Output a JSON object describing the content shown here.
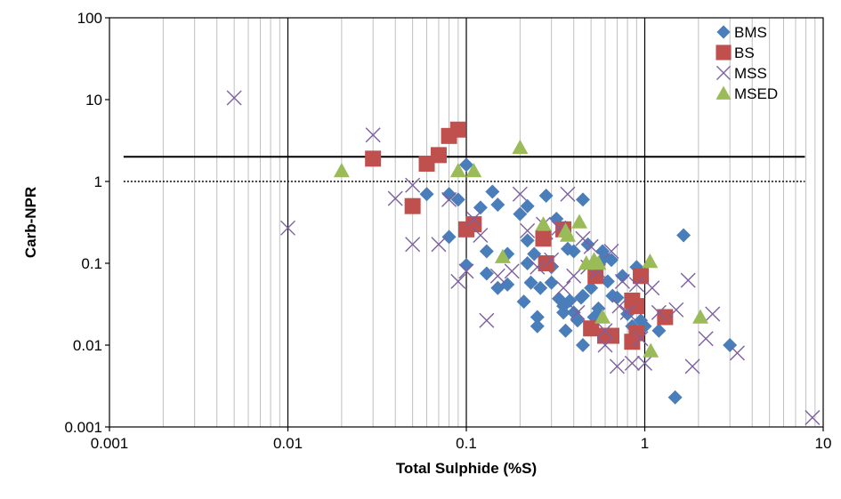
{
  "chart_data": {
    "type": "scatter",
    "title": "",
    "xlabel": "Total Sulphide (%S)",
    "ylabel": "Carb-NPR",
    "x_scale": "log",
    "y_scale": "log",
    "xlim": [
      0.001,
      10
    ],
    "ylim": [
      0.001,
      100
    ],
    "x_tick_labels": [
      "0.001",
      "0.01",
      "0.1",
      "1",
      "10"
    ],
    "y_tick_labels": [
      "0.001",
      "0.01",
      "0.1",
      "1",
      "10",
      "100"
    ],
    "grid": "vertical minor and major gridlines",
    "legend_position": "top-right",
    "reference_lines": [
      {
        "y": 2,
        "x_range": [
          0.0012,
          7.9
        ],
        "style": "solid"
      },
      {
        "y": 1,
        "x_range": [
          0.0012,
          7.9
        ],
        "style": "dotted"
      }
    ],
    "series": [
      {
        "name": "BMS",
        "marker": "diamond",
        "color": "#4a7ebb",
        "points": [
          [
            0.06,
            0.7
          ],
          [
            0.08,
            0.7
          ],
          [
            0.09,
            0.6
          ],
          [
            0.08,
            0.21
          ],
          [
            0.1,
            1.6
          ],
          [
            0.12,
            0.48
          ],
          [
            0.13,
            0.14
          ],
          [
            0.13,
            0.075
          ],
          [
            0.14,
            0.75
          ],
          [
            0.15,
            0.52
          ],
          [
            0.15,
            0.05
          ],
          [
            0.17,
            0.13
          ],
          [
            0.17,
            0.055
          ],
          [
            0.1,
            0.095
          ],
          [
            0.2,
            0.4
          ],
          [
            0.21,
            0.034
          ],
          [
            0.22,
            0.19
          ],
          [
            0.22,
            0.5
          ],
          [
            0.22,
            0.1
          ],
          [
            0.23,
            0.058
          ],
          [
            0.24,
            0.13
          ],
          [
            0.25,
            0.022
          ],
          [
            0.25,
            0.017
          ],
          [
            0.28,
            0.67
          ],
          [
            0.28,
            0.2
          ],
          [
            0.3,
            0.058
          ],
          [
            0.32,
            0.35
          ],
          [
            0.33,
            0.037
          ],
          [
            0.35,
            0.025
          ],
          [
            0.36,
            0.015
          ],
          [
            0.37,
            0.15
          ],
          [
            0.38,
            0.035
          ],
          [
            0.4,
            0.025
          ],
          [
            0.42,
            0.02
          ],
          [
            0.44,
            0.038
          ],
          [
            0.45,
            0.6
          ],
          [
            0.45,
            0.01
          ],
          [
            0.48,
            0.17
          ],
          [
            0.5,
            0.05
          ],
          [
            0.52,
            0.022
          ],
          [
            0.55,
            0.028
          ],
          [
            0.58,
            0.14
          ],
          [
            0.6,
            0.12
          ],
          [
            0.65,
            0.11
          ],
          [
            0.66,
            0.04
          ],
          [
            0.7,
            0.038
          ],
          [
            0.75,
            0.07
          ],
          [
            0.8,
            0.024
          ],
          [
            0.85,
            0.017
          ],
          [
            0.9,
            0.09
          ],
          [
            0.95,
            0.02
          ],
          [
            1.0,
            0.017
          ],
          [
            1.2,
            0.015
          ],
          [
            1.48,
            0.0023
          ],
          [
            1.65,
            0.22
          ],
          [
            3.0,
            0.01
          ],
          [
            0.3,
            0.09
          ],
          [
            0.4,
            0.14
          ],
          [
            0.55,
            0.1
          ],
          [
            0.35,
            0.03
          ],
          [
            0.45,
            0.04
          ],
          [
            0.62,
            0.06
          ],
          [
            0.26,
            0.05
          ]
        ]
      },
      {
        "name": "BS",
        "marker": "square",
        "color": "#c0504d",
        "points": [
          [
            0.03,
            1.9
          ],
          [
            0.05,
            0.5
          ],
          [
            0.06,
            1.65
          ],
          [
            0.07,
            2.1
          ],
          [
            0.08,
            3.6
          ],
          [
            0.09,
            4.3
          ],
          [
            0.1,
            0.26
          ],
          [
            0.11,
            0.3
          ],
          [
            0.27,
            0.2
          ],
          [
            0.28,
            0.1
          ],
          [
            0.35,
            0.26
          ],
          [
            0.5,
            0.016
          ],
          [
            0.53,
            0.07
          ],
          [
            0.6,
            0.013
          ],
          [
            0.65,
            0.013
          ],
          [
            0.85,
            0.035
          ],
          [
            0.85,
            0.011
          ],
          [
            0.9,
            0.014
          ],
          [
            0.95,
            0.07
          ],
          [
            1.3,
            0.022
          ],
          [
            0.9,
            0.03
          ]
        ]
      },
      {
        "name": "MSS",
        "marker": "x",
        "color": "#7d60a0",
        "points": [
          [
            0.005,
            10.5
          ],
          [
            0.01,
            0.27
          ],
          [
            0.03,
            3.7
          ],
          [
            0.04,
            0.62
          ],
          [
            0.05,
            0.9
          ],
          [
            0.05,
            0.17
          ],
          [
            0.07,
            0.17
          ],
          [
            0.08,
            0.6
          ],
          [
            0.09,
            0.06
          ],
          [
            0.1,
            0.08
          ],
          [
            0.11,
            0.35
          ],
          [
            0.12,
            0.22
          ],
          [
            0.13,
            0.02
          ],
          [
            0.15,
            0.07
          ],
          [
            0.18,
            0.08
          ],
          [
            0.2,
            0.7
          ],
          [
            0.22,
            0.25
          ],
          [
            0.25,
            0.09
          ],
          [
            0.27,
            0.3
          ],
          [
            0.3,
            0.11
          ],
          [
            0.35,
            0.05
          ],
          [
            0.37,
            0.7
          ],
          [
            0.4,
            0.07
          ],
          [
            0.42,
            0.025
          ],
          [
            0.45,
            0.2
          ],
          [
            0.48,
            0.09
          ],
          [
            0.5,
            0.16
          ],
          [
            0.55,
            0.08
          ],
          [
            0.6,
            0.015
          ],
          [
            0.65,
            0.14
          ],
          [
            0.7,
            0.0055
          ],
          [
            0.72,
            0.03
          ],
          [
            0.75,
            0.06
          ],
          [
            0.8,
            0.025
          ],
          [
            0.85,
            0.006
          ],
          [
            0.9,
            0.055
          ],
          [
            0.95,
            0.012
          ],
          [
            1.0,
            0.006
          ],
          [
            1.1,
            0.05
          ],
          [
            1.2,
            0.025
          ],
          [
            1.5,
            0.027
          ],
          [
            1.75,
            0.062
          ],
          [
            1.85,
            0.0055
          ],
          [
            2.2,
            0.012
          ],
          [
            2.4,
            0.024
          ],
          [
            3.3,
            0.008
          ],
          [
            8.7,
            0.0013
          ],
          [
            0.6,
            0.01
          ],
          [
            0.33,
            0.27
          ]
        ]
      },
      {
        "name": "MSED",
        "marker": "triangle",
        "color": "#9bbb59",
        "points": [
          [
            0.02,
            1.35
          ],
          [
            0.09,
            1.35
          ],
          [
            0.11,
            1.35
          ],
          [
            0.2,
            2.6
          ],
          [
            0.27,
            0.3
          ],
          [
            0.36,
            0.25
          ],
          [
            0.37,
            0.22
          ],
          [
            0.43,
            0.32
          ],
          [
            0.16,
            0.12
          ],
          [
            0.47,
            0.1
          ],
          [
            0.52,
            0.11
          ],
          [
            0.55,
            0.1
          ],
          [
            0.58,
            0.022
          ],
          [
            1.07,
            0.105
          ],
          [
            1.08,
            0.0085
          ],
          [
            2.05,
            0.022
          ]
        ]
      }
    ]
  }
}
